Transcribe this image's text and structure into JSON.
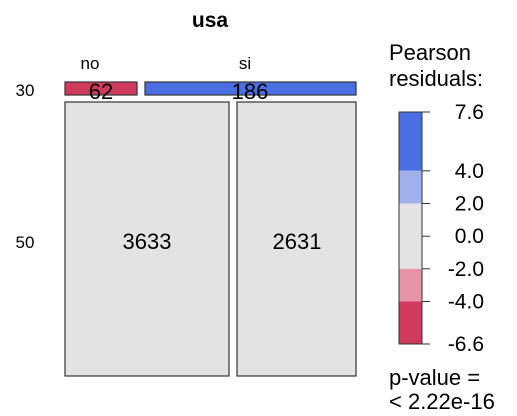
{
  "chart_data": {
    "type": "mosaic",
    "title": "usa",
    "column_variable": "usa",
    "column_levels": [
      "no",
      "si"
    ],
    "row_levels": [
      "30",
      "50"
    ],
    "cells": [
      {
        "row": "30",
        "col": "no",
        "count": 62,
        "residual_color": "#d03a5c"
      },
      {
        "row": "30",
        "col": "si",
        "count": 186,
        "residual_color": "#4a6fe3"
      },
      {
        "row": "50",
        "col": "no",
        "count": 3633,
        "residual_color": "#e3e3e3"
      },
      {
        "row": "50",
        "col": "si",
        "count": 2631,
        "residual_color": "#e3e3e3"
      }
    ],
    "legend": {
      "title_line1": "Pearson",
      "title_line2": "residuals:",
      "ticks": [
        "7.6",
        "4.0",
        "2.0",
        "0.0",
        "-2.0",
        "-4.0",
        "-6.6"
      ],
      "tick_values": [
        7.6,
        4.0,
        2.0,
        0.0,
        -2.0,
        -4.0,
        -6.6
      ],
      "bands": [
        {
          "from": 4.0,
          "to": 7.6,
          "color": "#4a6fe3"
        },
        {
          "from": 2.0,
          "to": 4.0,
          "color": "#a0b0ec"
        },
        {
          "from": -2.0,
          "to": 2.0,
          "color": "#e3e3e3"
        },
        {
          "from": -4.0,
          "to": -2.0,
          "color": "#e694a8"
        },
        {
          "from": -6.6,
          "to": -4.0,
          "color": "#d03a5c"
        }
      ]
    },
    "p_value_line1": "p-value =",
    "p_value_line2": "< 2.22e-16"
  }
}
